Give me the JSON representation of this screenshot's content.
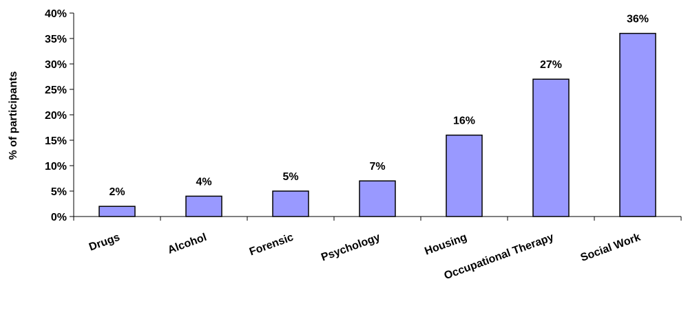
{
  "chart_data": {
    "type": "bar",
    "title": "",
    "xlabel": "",
    "ylabel": "% of participants",
    "categories": [
      "Drugs",
      "Alcohol",
      "Forensic",
      "Psychology",
      "Housing",
      "Occupational Therapy",
      "Social Work"
    ],
    "values": [
      2,
      4,
      5,
      7,
      16,
      27,
      36
    ],
    "value_labels": [
      "2%",
      "4%",
      "5%",
      "7%",
      "16%",
      "27%",
      "36%"
    ],
    "y_ticks": [
      0,
      5,
      10,
      15,
      20,
      25,
      30,
      35,
      40
    ],
    "y_tick_labels": [
      "0%",
      "5%",
      "10%",
      "15%",
      "20%",
      "25%",
      "30%",
      "35%",
      "40%"
    ],
    "ylim": [
      0,
      40
    ],
    "grid": false,
    "legend": "none",
    "bar_color": "#9999ff",
    "bar_stroke": "#000000"
  }
}
